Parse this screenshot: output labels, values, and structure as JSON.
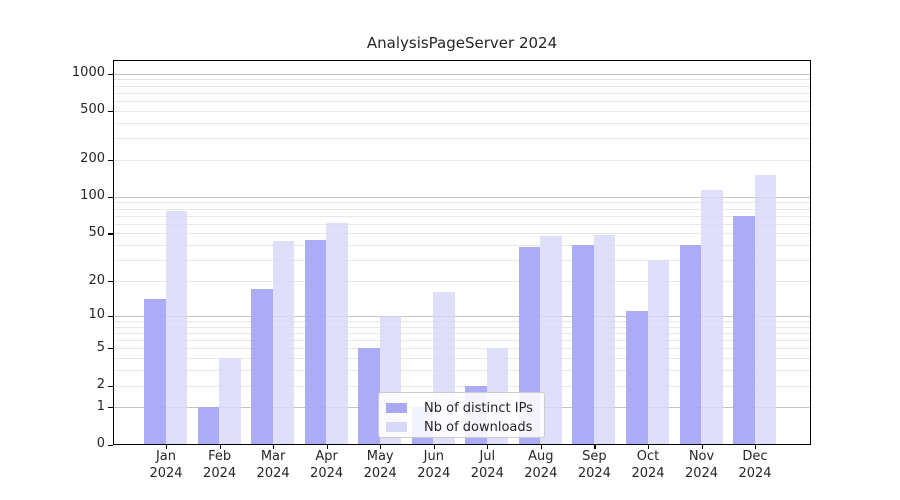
{
  "figure": {
    "title": "AnalysisPageServer 2024"
  },
  "chart_data": {
    "type": "bar",
    "title": "AnalysisPageServer 2024",
    "xlabel": "",
    "ylabel": "",
    "x_categories": [
      "Jan",
      "Feb",
      "Mar",
      "Apr",
      "May",
      "Jun",
      "Jul",
      "Aug",
      "Sep",
      "Oct",
      "Nov",
      "Dec"
    ],
    "x_year": "2024",
    "series": [
      {
        "name": "Nb of distinct IPs",
        "color": "#a8a8f5",
        "values": [
          14,
          1,
          17,
          44,
          5,
          1,
          2,
          39,
          40,
          11,
          40,
          70
        ]
      },
      {
        "name": "Nb of downloads",
        "color": "#d8d8f9",
        "values": [
          77,
          4,
          43,
          61,
          10,
          16,
          5,
          48,
          49,
          30,
          113,
          150
        ]
      }
    ],
    "y_ticks": [
      0,
      1,
      2,
      5,
      10,
      20,
      50,
      100,
      200,
      500,
      1000
    ],
    "y_scale": "log10(1+x)",
    "ylim": [
      0,
      1270
    ],
    "grid": true,
    "legend_position": "lower-center-inside"
  },
  "colors": {
    "grid_major": "#c3c3c3",
    "grid_minor": "#e7e7e7",
    "axis": "#000000",
    "background": "#ffffff"
  }
}
